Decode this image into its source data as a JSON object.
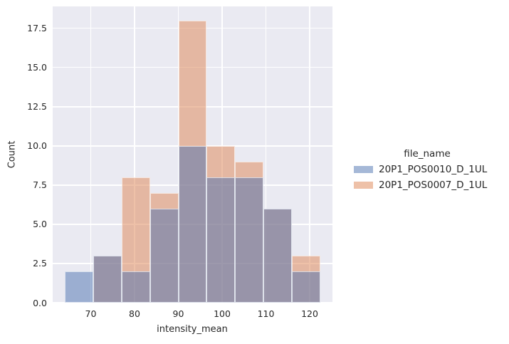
{
  "figure": {
    "background": "#ffffff",
    "plot_background": "#eaeaf2",
    "grid_color": "#ffffff",
    "text_color": "#262626"
  },
  "chart_data": {
    "type": "bar",
    "subtype": "layered-histogram",
    "title": "",
    "xlabel": "intensity_mean",
    "ylabel": "Count",
    "xlim": [
      61.3,
      125.2
    ],
    "ylim": [
      0,
      18.9
    ],
    "grid": true,
    "legend_position": "right-outside",
    "x_tick_values": [
      70,
      80,
      90,
      100,
      110,
      120
    ],
    "x_tick_labels": [
      "70",
      "80",
      "90",
      "100",
      "110",
      "120"
    ],
    "y_tick_values": [
      0,
      2.5,
      5,
      7.5,
      10,
      12.5,
      15,
      17.5
    ],
    "y_tick_labels": [
      "0.0",
      "2.5",
      "5.0",
      "7.5",
      "10.0",
      "12.5",
      "15.0",
      "17.5"
    ],
    "bin_edges": [
      64.0,
      70.5,
      77.0,
      83.5,
      90.0,
      96.5,
      103.0,
      109.5,
      116.0,
      122.5
    ],
    "series": [
      {
        "name": "20P1_POS0010_D_1UL",
        "color": "#4c72b0",
        "alpha": 0.5,
        "draw_order": 2,
        "counts": [
          2,
          3,
          2,
          6,
          10,
          8,
          8,
          6,
          2
        ]
      },
      {
        "name": "20P1_POS0007_D_1UL",
        "color": "#dd8452",
        "alpha": 0.5,
        "draw_order": 1,
        "counts": [
          0,
          3,
          8,
          7,
          18,
          10,
          9,
          6,
          3
        ]
      }
    ],
    "legend": {
      "title": "file_name"
    }
  }
}
